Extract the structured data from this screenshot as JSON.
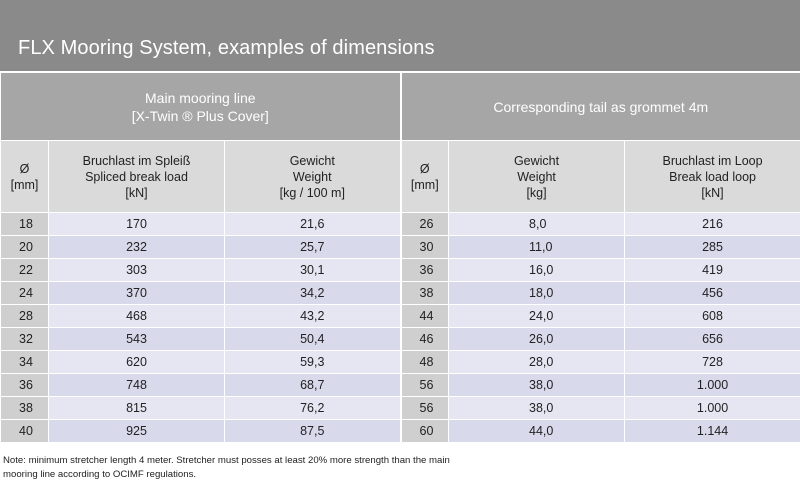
{
  "title": "FLX Mooring System, examples of dimensions",
  "groups": {
    "left_line1": "Main mooring line",
    "left_line2": "[X-Twin ® Plus Cover]",
    "right": "Corresponding tail as grommet 4m"
  },
  "columns": {
    "d1_a": "Ø",
    "d1_b": "[mm]",
    "splice_a": "Bruchlast im Spleiß",
    "splice_b": "Spliced break load",
    "splice_c": "[kN]",
    "weight1_a": "Gewicht",
    "weight1_b": "Weight",
    "weight1_c": "[kg / 100 m]",
    "d2_a": "Ø",
    "d2_b": "[mm]",
    "weight2_a": "Gewicht",
    "weight2_b": "Weight",
    "weight2_c": "[kg]",
    "loop_a": "Bruchlast im Loop",
    "loop_b": "Break load loop",
    "loop_c": "[kN]"
  },
  "rows": [
    {
      "d1": "18",
      "splice": "170",
      "weight1": "21,6",
      "d2": "26",
      "weight2": "8,0",
      "loop": "216"
    },
    {
      "d1": "20",
      "splice": "232",
      "weight1": "25,7",
      "d2": "30",
      "weight2": "11,0",
      "loop": "285"
    },
    {
      "d1": "22",
      "splice": "303",
      "weight1": "30,1",
      "d2": "36",
      "weight2": "16,0",
      "loop": "419"
    },
    {
      "d1": "24",
      "splice": "370",
      "weight1": "34,2",
      "d2": "38",
      "weight2": "18,0",
      "loop": "456"
    },
    {
      "d1": "28",
      "splice": "468",
      "weight1": "43,2",
      "d2": "44",
      "weight2": "24,0",
      "loop": "608"
    },
    {
      "d1": "32",
      "splice": "543",
      "weight1": "50,4",
      "d2": "46",
      "weight2": "26,0",
      "loop": "656"
    },
    {
      "d1": "34",
      "splice": "620",
      "weight1": "59,3",
      "d2": "48",
      "weight2": "28,0",
      "loop": "728"
    },
    {
      "d1": "36",
      "splice": "748",
      "weight1": "68,7",
      "d2": "56",
      "weight2": "38,0",
      "loop": "1.000"
    },
    {
      "d1": "38",
      "splice": "815",
      "weight1": "76,2",
      "d2": "56",
      "weight2": "38,0",
      "loop": "1.000"
    },
    {
      "d1": "40",
      "splice": "925",
      "weight1": "87,5",
      "d2": "60",
      "weight2": "44,0",
      "loop": "1.144"
    }
  ],
  "note_line1": "Note: minimum stretcher length 4 meter. Stretcher must posses at least 20% more strength than the main",
  "note_line2": "mooring line according to OCIMF regulations.",
  "colors": {
    "title_bar": "#8a8a8a",
    "group_header": "#a6a6a6",
    "column_header": "#dadada",
    "diameter_cell": "#cfcfcf",
    "row_light": "#e6e6f3",
    "row_dark": "#d9d9ec"
  }
}
